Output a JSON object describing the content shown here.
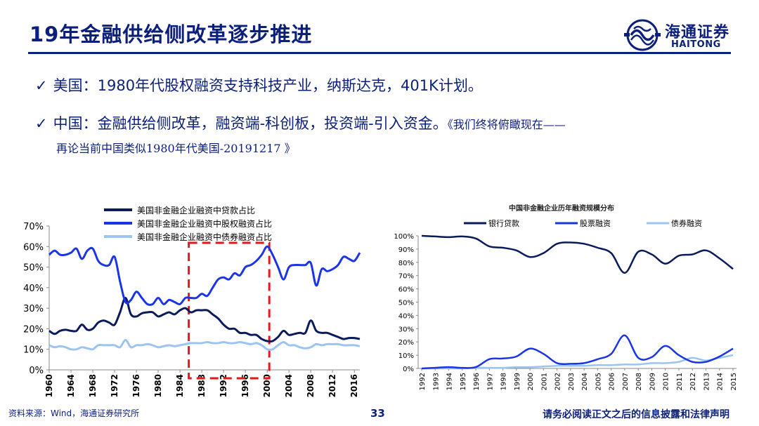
{
  "slide": {
    "title": "19年金融供给侧改革逐步推进",
    "page_number": "33"
  },
  "logo": {
    "cn": "海通证券",
    "en": "HAITONG"
  },
  "bullets": [
    {
      "check": "✓",
      "text": "美国：1980年代股权融资支持科技产业，纳斯达克，401K计划。"
    },
    {
      "check": "✓",
      "text": "中国：金融供给侧改革，融资端-科创板，投资端-引入资金。",
      "ref": "《我们终将俯瞰现在——",
      "ref_cont": "再论当前中国类似1980年代美国-20191217 》"
    }
  ],
  "footer": {
    "source": "资料来源：Wind，海通证券研究所",
    "disclaimer": "请务必阅读正文之后的信息披露和法律声明"
  },
  "colors": {
    "navy": "#0c1f7a",
    "loan": "#0a1a5c",
    "equity": "#1a35e6",
    "bond": "#9cc4f0",
    "highlight": "#e01a1a"
  },
  "chart_data": [
    {
      "type": "line",
      "title": "",
      "legend_position": "top",
      "x_ticks": [
        "1960",
        "1964",
        "1968",
        "1972",
        "1976",
        "1980",
        "1984",
        "1988",
        "1992",
        "1996",
        "2000",
        "2004",
        "2008",
        "2012",
        "2016"
      ],
      "ylim": [
        0,
        70
      ],
      "y_ticks": [
        "0%",
        "10%",
        "20%",
        "30%",
        "40%",
        "50%",
        "60%",
        "70%"
      ],
      "grid": false,
      "highlight_range": [
        1986,
        2000
      ],
      "x": [
        1960,
        1961,
        1962,
        1963,
        1964,
        1965,
        1966,
        1967,
        1968,
        1969,
        1970,
        1971,
        1972,
        1973,
        1974,
        1975,
        1976,
        1977,
        1978,
        1979,
        1980,
        1981,
        1982,
        1983,
        1984,
        1985,
        1986,
        1987,
        1988,
        1989,
        1990,
        1991,
        1992,
        1993,
        1994,
        1995,
        1996,
        1997,
        1998,
        1999,
        2000,
        2001,
        2002,
        2003,
        2004,
        2005,
        2006,
        2007,
        2008,
        2009,
        2010,
        2011,
        2012,
        2013,
        2014,
        2015,
        2016,
        2017
      ],
      "series": [
        {
          "name": "美国非金融企业融资中贷款占比",
          "color": "#0a1a5c",
          "values": [
            19,
            17.5,
            19,
            19.5,
            19,
            19,
            22,
            19.5,
            20,
            23,
            24,
            23,
            22,
            28,
            35,
            27,
            26,
            27.5,
            28,
            28,
            26,
            27,
            28,
            27,
            29,
            30,
            28,
            29,
            29,
            29,
            27,
            25,
            22,
            20,
            20,
            18,
            18,
            17,
            17,
            15,
            14,
            14,
            16,
            19,
            17,
            17.5,
            18,
            18,
            24,
            19,
            18,
            18,
            17,
            16,
            15,
            15.5,
            15.5,
            15
          ]
        },
        {
          "name": "美国非金融企业融资中股权融资占比",
          "color": "#1a35e6",
          "values": [
            56,
            58,
            56,
            56,
            57,
            59,
            54,
            58,
            59,
            53,
            51,
            51,
            55,
            43,
            33,
            34,
            38,
            35,
            32,
            32,
            35,
            32,
            34,
            33,
            32,
            35,
            35,
            35,
            37,
            36,
            40,
            44,
            45,
            44,
            47,
            46,
            50,
            51,
            53,
            56,
            60,
            56,
            50,
            44,
            50,
            51,
            51,
            51,
            52,
            41,
            49,
            48,
            49,
            51,
            55,
            54,
            53,
            57
          ]
        },
        {
          "name": "美国非金融企业融资中债券融资占比",
          "color": "#9cc4f0",
          "values": [
            12,
            11,
            11.5,
            11,
            10,
            10,
            11,
            10.5,
            10,
            12,
            12,
            12,
            12,
            11,
            14.5,
            11,
            12,
            12,
            12.5,
            12,
            11,
            11.5,
            12,
            11.5,
            12,
            12.5,
            13,
            13,
            13,
            13.5,
            13,
            13,
            13.5,
            13,
            13,
            13.5,
            13,
            12.5,
            13,
            12,
            10,
            10,
            12,
            13.5,
            12,
            12,
            11,
            10.5,
            11,
            12.5,
            12,
            12.5,
            12.5,
            12.5,
            12,
            12,
            12,
            11.5
          ]
        }
      ]
    },
    {
      "type": "line",
      "title": "中国非金融企业历年融资规模分布",
      "legend_position": "top",
      "x": [
        "1992",
        "1993",
        "1994",
        "1995",
        "1996",
        "1997",
        "1998",
        "1999",
        "2000",
        "2001",
        "2002",
        "2003",
        "2004",
        "2005",
        "2006",
        "2007",
        "2008",
        "2009",
        "2010",
        "2011",
        "2012",
        "2013",
        "2014",
        "2015"
      ],
      "ylim": [
        0,
        100
      ],
      "y_ticks": [
        "0%",
        "10%",
        "20%",
        "30%",
        "40%",
        "50%",
        "60%",
        "70%",
        "80%",
        "90%",
        "100%"
      ],
      "grid": false,
      "series": [
        {
          "name": "银行贷款",
          "color": "#0a1a5c",
          "values": [
            100,
            99.5,
            99,
            99.5,
            98,
            92,
            91,
            89,
            84,
            87,
            94,
            95,
            94,
            91,
            87,
            72,
            88,
            86,
            79,
            85,
            86,
            89,
            83,
            75
          ]
        },
        {
          "name": "股票融资",
          "color": "#1a35e6",
          "values": [
            0,
            0.5,
            1,
            0.5,
            1,
            7,
            7.5,
            9,
            15,
            11,
            4,
            3.5,
            4,
            7,
            11,
            25,
            8,
            8.5,
            17,
            10,
            5,
            5,
            9,
            15
          ]
        },
        {
          "name": "债券融资",
          "color": "#9cc4f0",
          "values": [
            0,
            0,
            0,
            0,
            0.5,
            0.5,
            0.5,
            1,
            1,
            1.5,
            2,
            2,
            2,
            2.5,
            2.5,
            3,
            3,
            4,
            4,
            5,
            8,
            6,
            8,
            10
          ]
        }
      ]
    }
  ]
}
